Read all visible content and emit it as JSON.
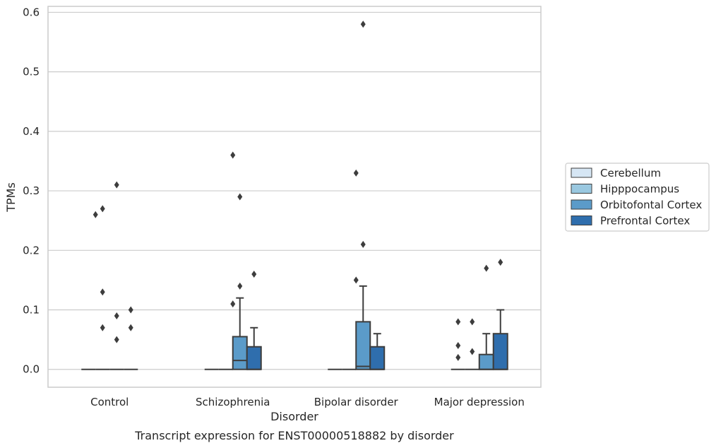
{
  "chart_data": {
    "type": "box",
    "xlabel": "Disorder",
    "ylabel": "TPMs",
    "caption": "Transcript expression for ENST00000518882 by disorder",
    "categories": [
      "Control",
      "Schizophrenia",
      "Bipolar disorder",
      "Major depression"
    ],
    "ylim": [
      -0.03,
      0.61
    ],
    "yticks": [
      "0.0",
      "0.1",
      "0.2",
      "0.3",
      "0.4",
      "0.5",
      "0.6"
    ],
    "grid": true,
    "legend_position": "right",
    "series": [
      {
        "name": "Cerebellum",
        "color": "#d6e6f4",
        "boxes": [
          {
            "q1": 0,
            "median": 0,
            "q3": 0,
            "whisker_low": 0,
            "whisker_high": 0,
            "outliers": []
          },
          {
            "q1": 0,
            "median": 0,
            "q3": 0,
            "whisker_low": 0,
            "whisker_high": 0,
            "outliers": []
          },
          {
            "q1": 0,
            "median": 0,
            "q3": 0,
            "whisker_low": 0,
            "whisker_high": 0,
            "outliers": []
          },
          {
            "q1": 0,
            "median": 0,
            "q3": 0,
            "whisker_low": 0,
            "whisker_high": 0,
            "outliers": [
              0.02,
              0.04,
              0.08
            ]
          }
        ]
      },
      {
        "name": "Hipppocampus",
        "color": "#9ac8e0",
        "boxes": [
          {
            "q1": 0,
            "median": 0,
            "q3": 0,
            "whisker_low": 0,
            "whisker_high": 0,
            "outliers": [
              0.07,
              0.13,
              0.27
            ]
          },
          {
            "q1": 0,
            "median": 0,
            "q3": 0,
            "whisker_low": 0,
            "whisker_high": 0,
            "outliers": []
          },
          {
            "q1": 0,
            "median": 0,
            "q3": 0,
            "whisker_low": 0,
            "whisker_high": 0,
            "outliers": []
          },
          {
            "q1": 0,
            "median": 0,
            "q3": 0,
            "whisker_low": 0,
            "whisker_high": 0,
            "outliers": [
              0.03,
              0.08
            ]
          }
        ]
      },
      {
        "name": "Orbitofontal Cortex",
        "color": "#5b9bc9",
        "boxes": [
          {
            "q1": 0,
            "median": 0,
            "q3": 0,
            "whisker_low": 0,
            "whisker_high": 0,
            "outliers": [
              0.05,
              0.09,
              0.31
            ]
          },
          {
            "q1": 0,
            "median": 0.015,
            "q3": 0.055,
            "whisker_low": 0,
            "whisker_high": 0.12,
            "outliers": [
              0.14,
              0.29
            ]
          },
          {
            "q1": 0,
            "median": 0.005,
            "q3": 0.08,
            "whisker_low": 0,
            "whisker_high": 0.14,
            "outliers": [
              0.21,
              0.58
            ]
          },
          {
            "q1": 0,
            "median": 0,
            "q3": 0.025,
            "whisker_low": 0,
            "whisker_high": 0.06,
            "outliers": [
              0.17
            ]
          }
        ]
      },
      {
        "name": "Prefrontal Cortex",
        "color": "#2f6ead",
        "boxes": [
          {
            "q1": 0,
            "median": 0,
            "q3": 0,
            "whisker_low": 0,
            "whisker_high": 0,
            "outliers": [
              0.07,
              0.1
            ]
          },
          {
            "q1": 0,
            "median": 0,
            "q3": 0.038,
            "whisker_low": 0,
            "whisker_high": 0.07,
            "outliers": [
              0.16
            ]
          },
          {
            "q1": 0,
            "median": 0,
            "q3": 0.038,
            "whisker_low": 0,
            "whisker_high": 0.06,
            "outliers": []
          },
          {
            "q1": 0,
            "median": 0,
            "q3": 0.06,
            "whisker_low": 0,
            "whisker_high": 0.1,
            "outliers": [
              0.18
            ]
          }
        ]
      }
    ],
    "extra_outliers": [
      {
        "category_index": 0,
        "between_series": [
          0,
          1
        ],
        "values": [
          0.26
        ]
      },
      {
        "category_index": 1,
        "between_series": [
          1,
          2
        ],
        "values": [
          0.11,
          0.36
        ]
      },
      {
        "category_index": 2,
        "between_series": [
          1,
          2
        ],
        "values": [
          0.15,
          0.33
        ]
      }
    ]
  }
}
